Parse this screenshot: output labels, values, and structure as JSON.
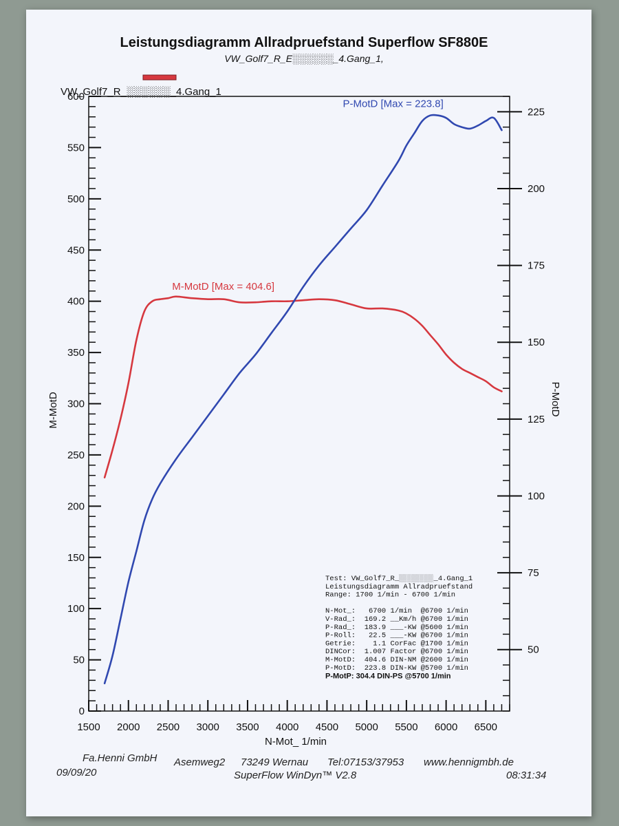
{
  "header": {
    "title": "Leistungsdiagramm Allradpruefstand Superflow SF880E",
    "subtitle": "VW_Golf7_R_E░░░░░░_4.Gang_1,",
    "legend_label": "VW_Golf7_R_░░░░░░_4.Gang_1"
  },
  "chart_data": {
    "type": "line",
    "xlabel": "N-Mot_ 1/min",
    "ylabel_left": "M-MotD",
    "ylabel_right": "P-MotD",
    "xlim": [
      1500,
      6800
    ],
    "ylim_left": [
      0,
      600
    ],
    "ylim_right": [
      30,
      230
    ],
    "x_ticks": [
      1500,
      2000,
      2500,
      3000,
      3500,
      4000,
      4500,
      5000,
      5500,
      6000,
      6500
    ],
    "y_ticks_left": [
      0,
      50,
      100,
      150,
      200,
      250,
      300,
      350,
      400,
      450,
      500,
      550,
      600
    ],
    "y_ticks_right": [
      50,
      75,
      100,
      125,
      150,
      175,
      200,
      225
    ],
    "grid": false,
    "series": [
      {
        "name": "M-MotD",
        "axis": "left",
        "color": "#d6383f",
        "annotation": "M-MotD [Max = 404.6]",
        "x": [
          1700,
          1800,
          1900,
          2000,
          2100,
          2200,
          2300,
          2400,
          2500,
          2600,
          2800,
          3000,
          3200,
          3400,
          3600,
          3800,
          4000,
          4200,
          4400,
          4600,
          4800,
          5000,
          5200,
          5400,
          5500,
          5600,
          5700,
          5800,
          5900,
          6000,
          6100,
          6200,
          6300,
          6400,
          6500,
          6600,
          6700
        ],
        "values": [
          228,
          255,
          285,
          320,
          362,
          390,
          400,
          402,
          403,
          404.6,
          403,
          402,
          402,
          399,
          399,
          400,
          400,
          401,
          402,
          401,
          397,
          393,
          393,
          391,
          388,
          383,
          376,
          367,
          358,
          348,
          340,
          334,
          330,
          326,
          322,
          316,
          312
        ]
      },
      {
        "name": "P-MotD",
        "axis": "right",
        "color": "#3048b0",
        "annotation": "P-MotD [Max = 223.8]",
        "x": [
          1700,
          1800,
          1900,
          2000,
          2100,
          2200,
          2300,
          2400,
          2600,
          2800,
          3000,
          3200,
          3400,
          3600,
          3800,
          4000,
          4200,
          4400,
          4600,
          4800,
          5000,
          5200,
          5400,
          5500,
          5600,
          5700,
          5800,
          5900,
          6000,
          6100,
          6200,
          6300,
          6400,
          6500,
          6600,
          6700
        ],
        "values": [
          39,
          48,
          60,
          72,
          82,
          92,
          99,
          104,
          112,
          119,
          126,
          133,
          140,
          146,
          153,
          160,
          168,
          175,
          181,
          187,
          193,
          201,
          209,
          214,
          218,
          222,
          223.8,
          223.8,
          223,
          221,
          220,
          219.5,
          220.5,
          222,
          223,
          219
        ]
      }
    ]
  },
  "info_box": {
    "lines": [
      "Test: VW_Golf7_R_░░░░░░░░_4.Gang_1",
      "Leistungsdiagramm Allradpruefstand",
      "Range: 1700 1/min - 6700 1/min",
      "",
      "N-Mot_:   6700 1/min  @6700 1/min",
      "V-Rad_:  169.2 __Km/h @6700 1/min",
      "P-Rad_:  183.9 ___-KW @5600 1/min",
      "P-Roll:   22.5 ___-KW @6700 1/min",
      "Getrie:    1.1 CorFac @1700 1/min",
      "DINCor:  1.007 Factor @6700 1/min",
      "M-MotD:  404.6 DIN-NM @2600 1/min",
      "P-MotD:  223.8 DIN-KW @5700 1/min"
    ],
    "bold_line": "P-MotP:  304.4 DIN-PS @5700 1/min"
  },
  "footer": {
    "company": "Fa.Henni GmbH",
    "street": "Asemweg2",
    "city": "73249 Wernau",
    "phone": "Tel:07153/37953",
    "web": "www.hennigmbh.de",
    "date": "09/09/20",
    "software": "SuperFlow WinDyn™ V2.8",
    "time": "08:31:34"
  }
}
